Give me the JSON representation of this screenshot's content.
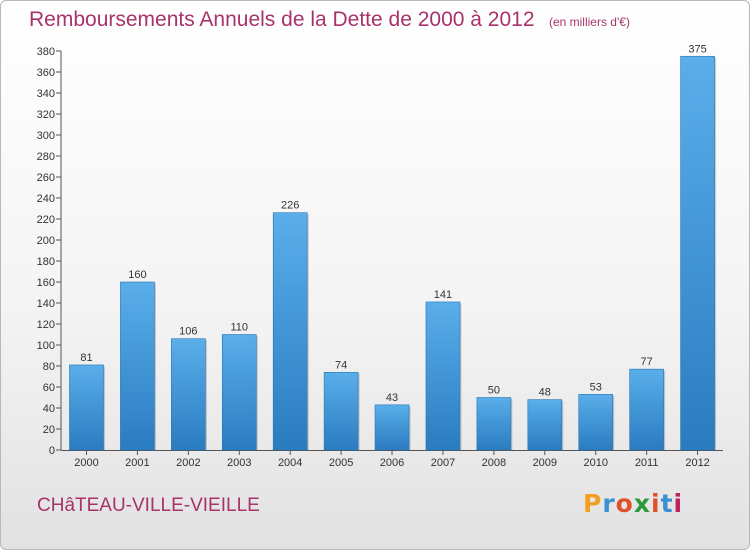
{
  "header": {
    "title": "Remboursements Annuels de la Dette de 2000 à 2012",
    "unit": "(en milliers d'€)"
  },
  "footer": {
    "place": "CHâTEAU-VILLE-VIEILLE",
    "logo_text": "Proxiti"
  },
  "colors": {
    "title": "#a8336b",
    "bar_light": "#5aaeea",
    "bar_dark": "#2a7cc0",
    "logo_letters": [
      "#f0a020",
      "#3a90d0",
      "#e0502a",
      "#2a9a3a",
      "#e0502a",
      "#3a90d0",
      "#c02060"
    ]
  },
  "chart_data": {
    "type": "bar",
    "categories": [
      "2000",
      "2001",
      "2002",
      "2003",
      "2004",
      "2005",
      "2006",
      "2007",
      "2008",
      "2009",
      "2010",
      "2011",
      "2012"
    ],
    "values": [
      81,
      160,
      106,
      110,
      226,
      74,
      43,
      141,
      50,
      48,
      53,
      77,
      375
    ],
    "ylim": [
      0,
      380
    ],
    "ytick_step": 20,
    "grid": false,
    "data_labels": true
  }
}
